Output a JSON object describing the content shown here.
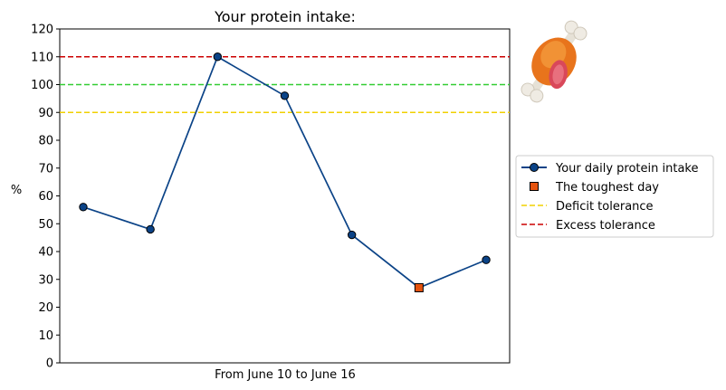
{
  "chart_data": {
    "type": "line",
    "title": "Your protein intake:",
    "xlabel": "From June 10 to June 16",
    "ylabel": "%",
    "ylim": [
      0,
      120
    ],
    "yticks": [
      0,
      10,
      20,
      30,
      40,
      50,
      60,
      70,
      80,
      90,
      100,
      110,
      120
    ],
    "x": [
      1,
      2,
      3,
      4,
      5,
      6,
      7
    ],
    "grid": false,
    "legend_position": "right",
    "series": [
      {
        "name": "Your daily protein intake",
        "values": [
          56,
          48,
          110,
          96,
          46,
          27,
          37
        ],
        "color": "#0b4387",
        "marker": "circle"
      }
    ],
    "highlight": {
      "name": "The toughest day",
      "x": 6,
      "y": 27,
      "color": "#e5530f",
      "marker": "square"
    },
    "reference_lines": [
      {
        "name": "Deficit tolerance",
        "y": 90,
        "color": "#f0d000",
        "style": "dashed"
      },
      {
        "name": "",
        "y": 100,
        "color": "#32cd32",
        "style": "dashed"
      },
      {
        "name": "Excess tolerance",
        "y": 110,
        "color": "#cc0000",
        "style": "dashed"
      }
    ],
    "legend": [
      "Your daily protein intake",
      "The toughest day",
      "Deficit tolerance",
      "Excess tolerance"
    ]
  },
  "decoration": {
    "icon": "meat-on-bone-icon"
  }
}
